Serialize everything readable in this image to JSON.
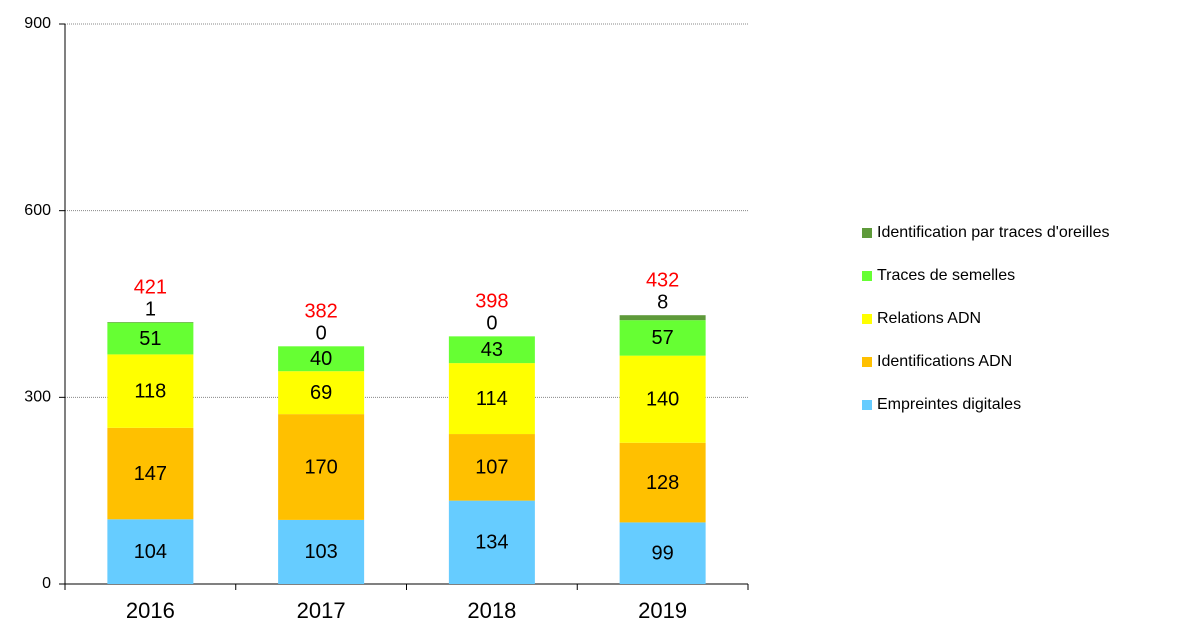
{
  "chart_data": {
    "type": "stacked_bar",
    "categories": [
      "2016",
      "2017",
      "2018",
      "2019"
    ],
    "series": [
      {
        "name": "Empreintes digitales",
        "color": "#66ccff",
        "values": [
          104,
          103,
          134,
          99
        ]
      },
      {
        "name": "Identifications ADN",
        "color": "#ffc000",
        "values": [
          147,
          170,
          107,
          128
        ]
      },
      {
        "name": "Relations ADN",
        "color": "#ffff00",
        "values": [
          118,
          69,
          114,
          140
        ]
      },
      {
        "name": "Traces de semelles",
        "color": "#66ff33",
        "values": [
          51,
          40,
          43,
          57
        ]
      },
      {
        "name": "Identification par traces d'oreilles",
        "color": "#5e9a3a",
        "values": [
          1,
          0,
          0,
          8
        ]
      }
    ],
    "totals": [
      421,
      382,
      398,
      432
    ],
    "totals_color": "#ff0000",
    "ylim": [
      0,
      900
    ],
    "yticks": [
      0,
      300,
      600,
      900
    ],
    "grid": true,
    "legend": "right"
  }
}
